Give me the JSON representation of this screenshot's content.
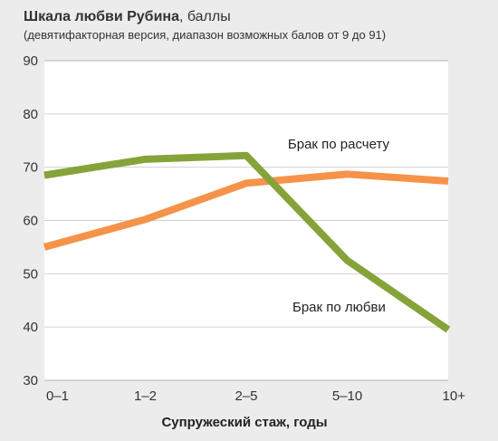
{
  "chart_data": {
    "type": "line",
    "title_bold": "Шкала любви Рубина",
    "title_rest": ", баллы",
    "subtitle": "(девятифакторная версия, диапазон возможных балов от 9 до 91)",
    "xlabel": "Супружеский стаж, годы",
    "ylabel": "",
    "categories": [
      "0–1",
      "1–2",
      "2–5",
      "5–10",
      "10+"
    ],
    "ylim": [
      30,
      90
    ],
    "yticks": [
      "30",
      "40",
      "50",
      "60",
      "70",
      "80",
      "90"
    ],
    "grid": "horizontal",
    "series": [
      {
        "name": "Брак по любви",
        "color": "#86a33a",
        "values": [
          68.5,
          71.5,
          72.2,
          52.5,
          39.5
        ]
      },
      {
        "name": "Брак по расчету",
        "color": "#f5934a",
        "values": [
          55,
          60.2,
          67,
          68.7,
          67.4
        ]
      }
    ]
  }
}
